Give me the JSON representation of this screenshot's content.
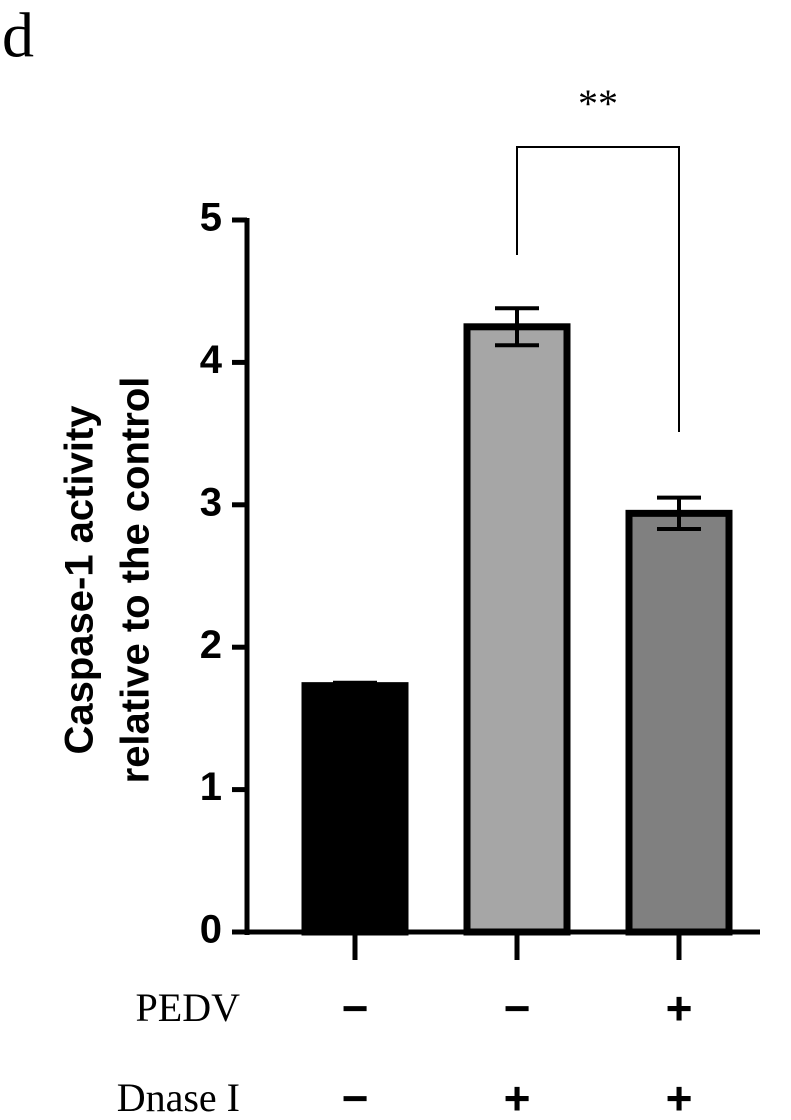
{
  "chart_data": {
    "type": "bar",
    "panel_label": "d",
    "y_label": [
      "Caspase-1 activity",
      "relative to the control"
    ],
    "series": [
      {
        "values": [
          1.73,
          4.25,
          2.94
        ],
        "errors": [
          0.02,
          0.13,
          0.11
        ],
        "colors": [
          "#000000",
          "#a6a6a6",
          "#808080"
        ]
      }
    ],
    "ylim": [
      0,
      5
    ],
    "yticks": [
      0,
      1,
      2,
      3,
      4,
      5
    ],
    "significance": "**",
    "conditions": [
      {
        "name": "PEDV",
        "values": [
          "−",
          "−",
          "+"
        ]
      },
      {
        "name": "Dnase I",
        "values": [
          "−",
          "+",
          "+"
        ]
      }
    ]
  }
}
